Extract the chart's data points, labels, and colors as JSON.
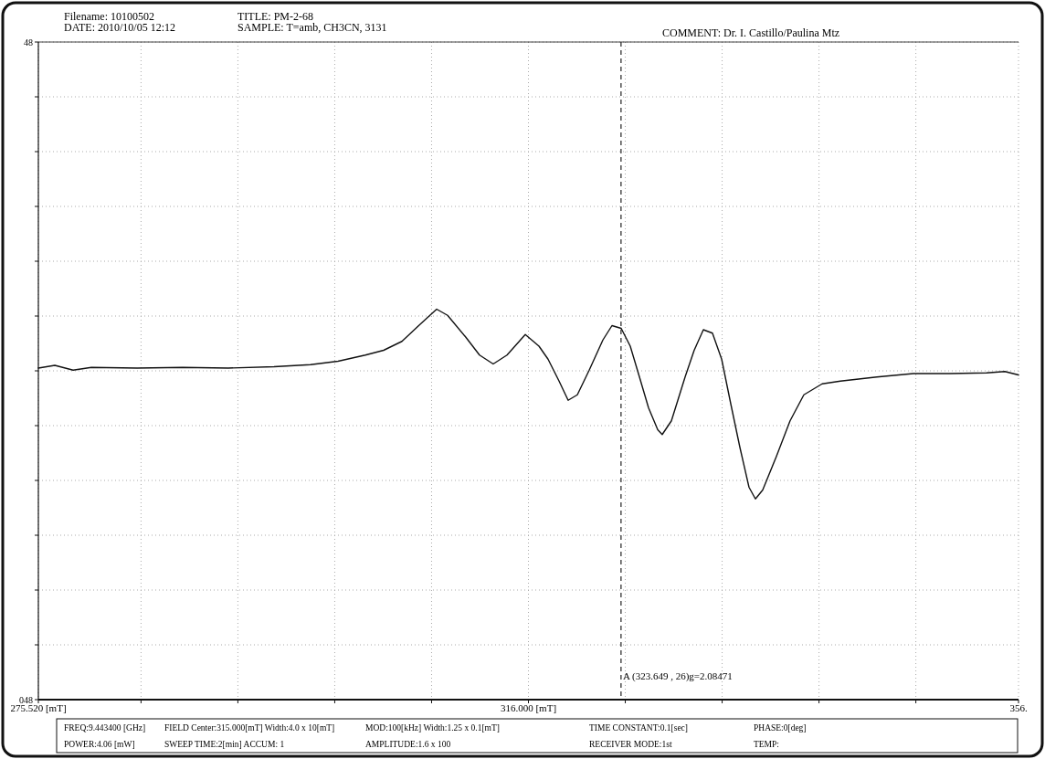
{
  "chart_data": {
    "type": "line",
    "title": "TITLE: PM-2-68",
    "annotations": [
      "Filename: 10100502",
      "DATE: 2010/10/05 12:12",
      "SAMPLE: T=amb, CH3CN, 3131",
      "COMMENT: Dr. I. Castillo/Paulina Mtz",
      "FREQ:9.443400 [GHz]",
      "FIELD Center:315.000[mT] Width:4.0 x 10[mT]",
      "MOD:100[kHz]  Width:1.25 x 0.1[mT]",
      "TIME CONSTANT:0.1[sec]",
      "PHASE:0[deg]",
      "POWER:4.06 [mW]",
      "SWEEP TIME:2[min] ACCUM: 1",
      "AMPLITUDE:1.6 x 100",
      "RECEIVER MODE:1st",
      "TEMP:"
    ],
    "x": [
      275.52,
      276.88,
      278.39,
      279.9,
      283.67,
      287.44,
      291.21,
      294.99,
      298.0,
      300.27,
      302.53,
      304.04,
      305.55,
      307.06,
      308.42,
      309.32,
      310.83,
      311.96,
      313.09,
      314.23,
      315.74,
      316.87,
      317.62,
      318.53,
      319.28,
      320.04,
      321.02,
      322.15,
      322.9,
      323.66,
      324.41,
      325.17,
      325.92,
      326.68,
      327.05,
      327.81,
      328.94,
      329.69,
      330.45,
      331.2,
      331.96,
      332.71,
      333.47,
      334.22,
      334.75,
      335.35,
      336.48,
      337.61,
      338.75,
      340.26,
      341.77,
      344.78,
      347.8,
      350.82,
      353.84,
      355.35,
      356.48
    ],
    "series": [
      {
        "color": "#111111",
        "values": [
          0.4,
          0.8,
          0.1,
          0.5,
          0.4,
          0.5,
          0.4,
          0.6,
          0.9,
          1.4,
          2.3,
          3.0,
          4.3,
          6.8,
          9.0,
          8.1,
          4.9,
          2.3,
          1.0,
          2.3,
          5.3,
          3.6,
          1.7,
          -1.5,
          -4.3,
          -3.5,
          0.1,
          4.5,
          6.6,
          6.2,
          3.6,
          -0.9,
          -5.4,
          -8.6,
          -9.3,
          -7.3,
          -0.9,
          3.0,
          6.0,
          5.5,
          1.7,
          -4.8,
          -11.2,
          -17.0,
          -18.7,
          -17.4,
          -12.5,
          -7.3,
          -3.5,
          -1.9,
          -1.5,
          -0.9,
          -0.4,
          -0.4,
          -0.3,
          -0.1,
          -0.6
        ]
      }
    ],
    "xlim": [
      275.52,
      356.48
    ],
    "xticks": [
      {
        "value": 275.52,
        "label": "275.520 [mT]"
      },
      {
        "value": 284,
        "label": null
      },
      {
        "value": 292,
        "label": null
      },
      {
        "value": 300,
        "label": null
      },
      {
        "value": 308,
        "label": null
      },
      {
        "value": 316,
        "label": "316.000 [mT]"
      },
      {
        "value": 324,
        "label": null
      },
      {
        "value": 332,
        "label": null
      },
      {
        "value": 340,
        "label": null
      },
      {
        "value": 348,
        "label": null
      },
      {
        "value": 356.48,
        "label": "356."
      }
    ],
    "ylim": [
      -48,
      48
    ],
    "yticks": [
      {
        "value": -48,
        "label": "048"
      },
      {
        "value": -40,
        "label": null
      },
      {
        "value": -32,
        "label": null
      },
      {
        "value": -24,
        "label": null
      },
      {
        "value": -16,
        "label": null
      },
      {
        "value": -8,
        "label": null
      },
      {
        "value": 0,
        "label": null
      },
      {
        "value": 8,
        "label": null
      },
      {
        "value": 16,
        "label": null
      },
      {
        "value": 24,
        "label": null
      },
      {
        "value": 32,
        "label": null
      },
      {
        "value": 40,
        "label": null
      },
      {
        "value": 48,
        "label": "48"
      }
    ],
    "ref_lines": [
      {
        "axis": "x",
        "value": 323.649,
        "label": "A (323.649 ,   26)g=2.08471",
        "line_style": "dashed",
        "color": "#222222"
      }
    ],
    "grid": true,
    "marker": "none",
    "line_style": "solid"
  }
}
